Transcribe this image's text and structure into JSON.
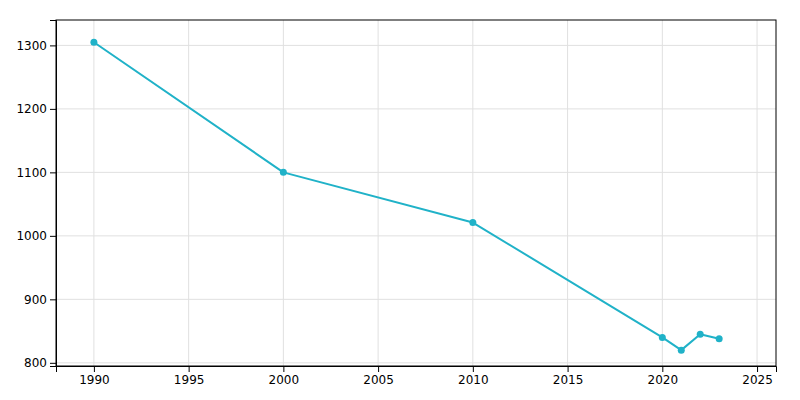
{
  "chart_data": {
    "type": "line",
    "x": [
      1990,
      2000,
      2010,
      2020,
      2021,
      2022,
      2023
    ],
    "values": [
      1305,
      1100,
      1021,
      840,
      820,
      845,
      838
    ],
    "color": "#20b2c8",
    "marker": "circle",
    "xlim": [
      1988,
      2026
    ],
    "ylim": [
      795,
      1340
    ],
    "xticks": [
      1990,
      1995,
      2000,
      2005,
      2010,
      2015,
      2020,
      2025
    ],
    "yticks": [
      800,
      900,
      1000,
      1100,
      1200,
      1300
    ],
    "grid": true
  }
}
